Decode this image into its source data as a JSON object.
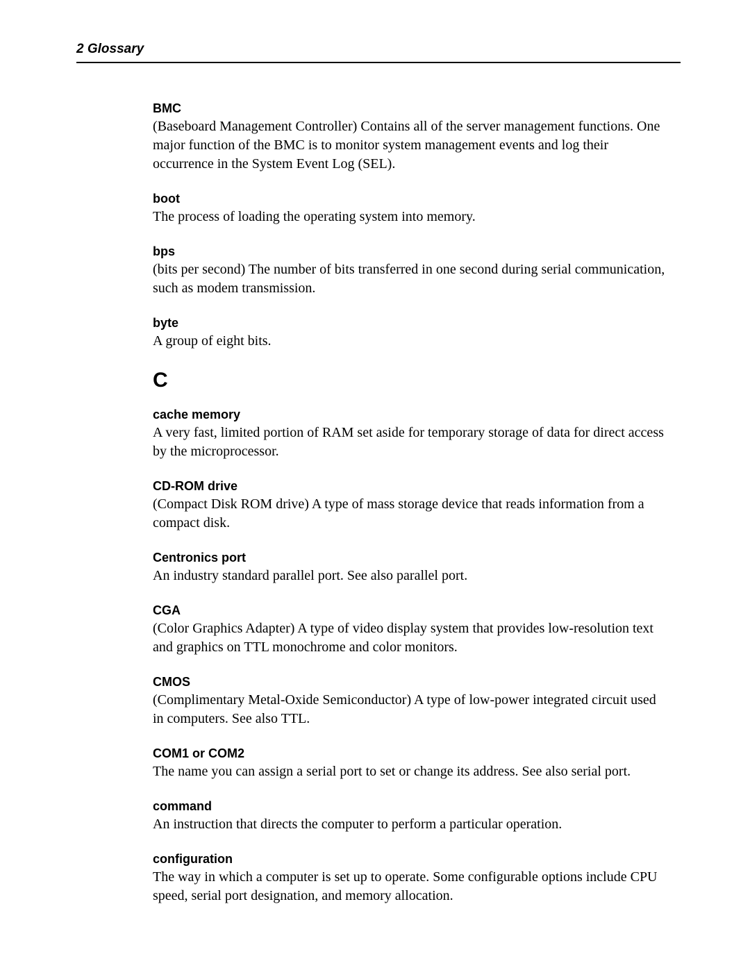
{
  "header": {
    "title": "2  Glossary"
  },
  "entries": [
    {
      "type": "entry",
      "term": "BMC",
      "definition": "(Baseboard Management Controller) Contains all of the server management functions. One major function of the BMC is to monitor system management events and log their occurrence in the System Event Log (SEL)."
    },
    {
      "type": "entry",
      "term": "boot",
      "definition": "The process of loading the operating system into memory."
    },
    {
      "type": "entry",
      "term": "bps",
      "definition": "(bits per second) The number of bits transferred in one second during serial communication, such as modem transmission."
    },
    {
      "type": "entry",
      "term": "byte",
      "definition": "A group of eight bits."
    },
    {
      "type": "letter",
      "letter": "C"
    },
    {
      "type": "entry",
      "term": "cache memory",
      "definition": "A very fast, limited portion of RAM set aside for temporary storage of data for direct access by the microprocessor."
    },
    {
      "type": "entry",
      "term": "CD-ROM drive",
      "definition": "(Compact Disk ROM drive) A type of mass storage device that reads information from a compact disk."
    },
    {
      "type": "entry",
      "term": "Centronics port",
      "definition": "An industry standard parallel port. See also parallel port."
    },
    {
      "type": "entry",
      "term": "CGA",
      "definition": "(Color Graphics Adapter) A type of video display system that provides low-resolution text and graphics on TTL monochrome and color monitors."
    },
    {
      "type": "entry",
      "term": "CMOS",
      "definition": "(Complimentary Metal-Oxide Semiconductor) A type of low-power integrated circuit used in computers. See also TTL."
    },
    {
      "type": "entry",
      "term": "COM1 or COM2",
      "definition": "The name you can assign a serial port to set or change its address. See also serial port."
    },
    {
      "type": "entry",
      "term": "command",
      "definition": "An instruction that directs the computer to perform a particular operation."
    },
    {
      "type": "entry",
      "term": "configuration",
      "definition": "The way in which a computer is set up to operate. Some configurable options include CPU speed, serial port designation, and memory allocation."
    }
  ]
}
